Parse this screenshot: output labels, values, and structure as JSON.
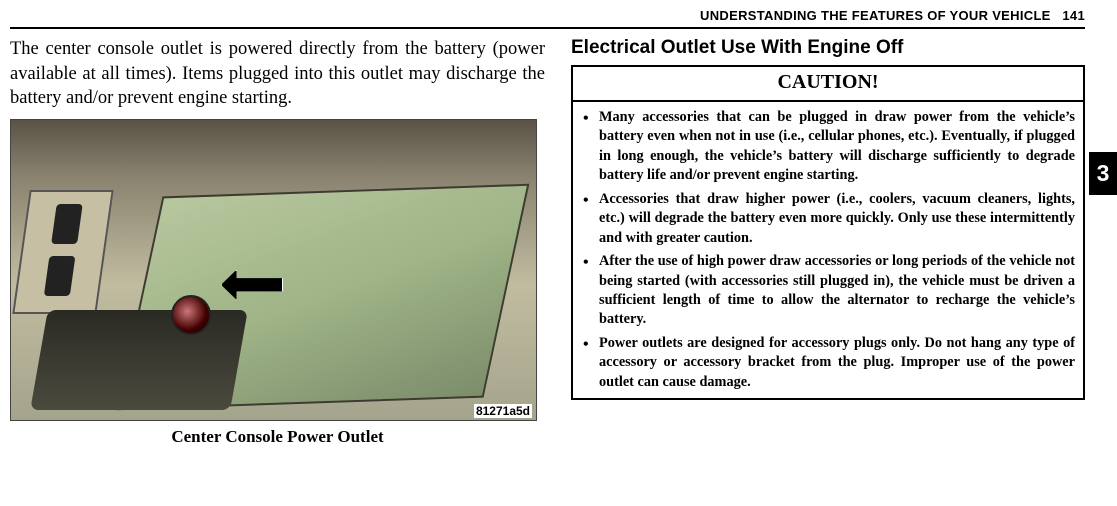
{
  "runningHead": {
    "text": "UNDERSTANDING THE FEATURES OF YOUR VEHICLE",
    "pageNum": "141"
  },
  "thumbTab": "3",
  "left": {
    "paragraph": "The center console outlet is powered directly from the battery (power available at all times). Items plugged into this outlet may discharge the battery and/or prevent engine starting.",
    "imageRef": "81271a5d",
    "caption": "Center Console Power Outlet"
  },
  "right": {
    "heading": "Electrical Outlet Use With Engine Off",
    "cautionTitle": "CAUTION!",
    "bullets": [
      "Many accessories that can be plugged in draw power from the vehicle’s battery even when not in use (i.e., cellular phones, etc.). Eventually, if plugged in long enough, the vehicle’s battery will discharge sufficiently to degrade battery life and/or prevent engine starting.",
      "Accessories that draw higher power (i.e., coolers, vacuum cleaners, lights, etc.) will degrade the battery even more quickly. Only use these intermittently and with greater caution.",
      "After the use of high power draw accessories or long periods of the vehicle not being started (with accessories still plugged in), the vehicle must be driven a sufficient length of time to allow the alternator to recharge the vehicle’s battery.",
      "Power outlets are designed for accessory plugs only. Do not hang any type of accessory or accessory bracket from the plug. Improper use of the power outlet can cause damage."
    ]
  }
}
